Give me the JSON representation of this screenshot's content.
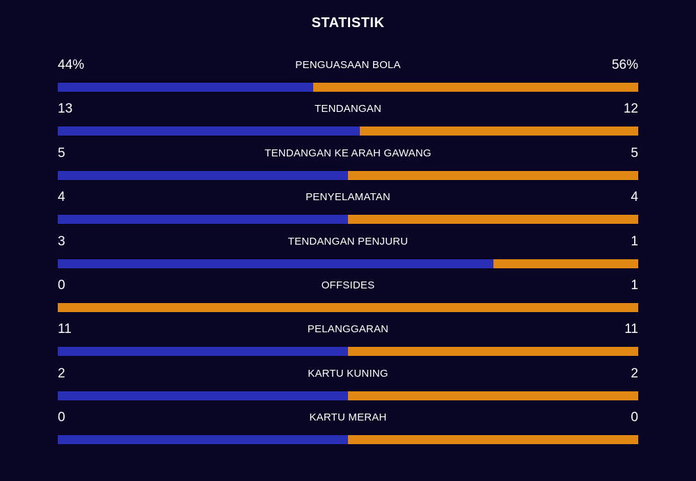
{
  "title": "STATISTIK",
  "colors": {
    "background": "#080624",
    "home": "#2a2fb7",
    "away": "#e08714",
    "text": "#ffffff"
  },
  "stats": [
    {
      "label": "PENGUASAAN BOLA",
      "left": "44%",
      "right": "56%",
      "left_share": 0.44
    },
    {
      "label": "TENDANGAN",
      "left": "13",
      "right": "12",
      "left_share": 0.52
    },
    {
      "label": "TENDANGAN KE ARAH GAWANG",
      "left": "5",
      "right": "5",
      "left_share": 0.5
    },
    {
      "label": "PENYELAMATAN",
      "left": "4",
      "right": "4",
      "left_share": 0.5
    },
    {
      "label": "TENDANGAN PENJURU",
      "left": "3",
      "right": "1",
      "left_share": 0.75
    },
    {
      "label": "OFFSIDES",
      "left": "0",
      "right": "1",
      "left_share": 0.0
    },
    {
      "label": "PELANGGARAN",
      "left": "11",
      "right": "11",
      "left_share": 0.5
    },
    {
      "label": "KARTU KUNING",
      "left": "2",
      "right": "2",
      "left_share": 0.5
    },
    {
      "label": "KARTU MERAH",
      "left": "0",
      "right": "0",
      "left_share": 0.5
    }
  ]
}
